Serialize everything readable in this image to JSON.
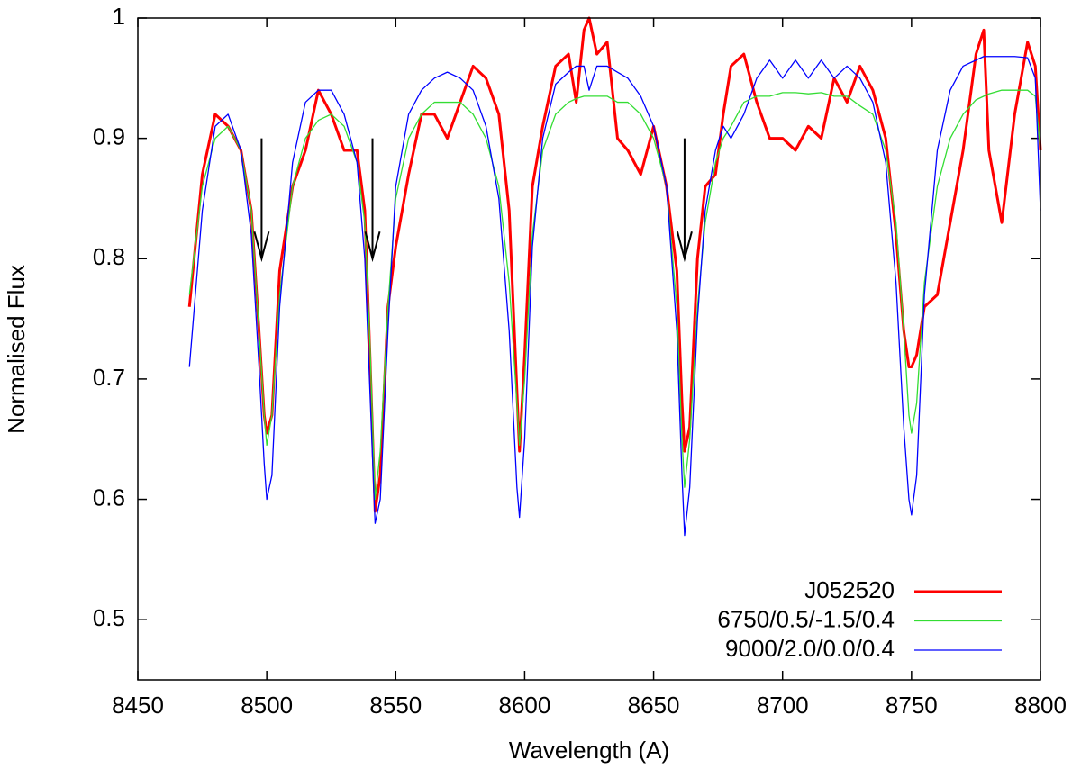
{
  "chart_data": {
    "type": "line",
    "x_label": "Wavelength (A)",
    "y_label": "Normalised Flux",
    "xlim": [
      8450,
      8800
    ],
    "ylim": [
      0.45,
      1
    ],
    "xticks": [
      8450,
      8500,
      8550,
      8600,
      8650,
      8700,
      8750,
      8800
    ],
    "yticks": [
      0.5,
      0.6,
      0.7,
      0.8,
      0.9,
      1
    ],
    "legend": "lower right",
    "x": [
      8470,
      8475,
      8480,
      8485,
      8490,
      8494,
      8497,
      8499,
      8500,
      8502,
      8505,
      8510,
      8515,
      8520,
      8525,
      8530,
      8535,
      8538,
      8540,
      8542,
      8544,
      8547,
      8550,
      8555,
      8560,
      8565,
      8570,
      8575,
      8580,
      8585,
      8590,
      8594,
      8597,
      8598,
      8600,
      8603,
      8607,
      8612,
      8617,
      8620,
      8623,
      8625,
      8628,
      8632,
      8636,
      8640,
      8645,
      8650,
      8655,
      8659,
      8661,
      8662,
      8664,
      8667,
      8670,
      8674,
      8677,
      8680,
      8685,
      8690,
      8695,
      8700,
      8705,
      8710,
      8715,
      8720,
      8725,
      8730,
      8735,
      8740,
      8744,
      8747,
      8749,
      8750,
      8752,
      8755,
      8760,
      8765,
      8770,
      8775,
      8778,
      8780,
      8785,
      8790,
      8795,
      8798,
      8800
    ],
    "series": [
      {
        "name": "J052520",
        "color": "#ff0000",
        "width": 3,
        "values": [
          0.76,
          0.87,
          0.92,
          0.91,
          0.89,
          0.84,
          0.74,
          0.67,
          0.655,
          0.67,
          0.79,
          0.86,
          0.89,
          0.94,
          0.92,
          0.89,
          0.89,
          0.84,
          0.72,
          0.59,
          0.62,
          0.76,
          0.81,
          0.87,
          0.92,
          0.92,
          0.9,
          0.93,
          0.96,
          0.95,
          0.92,
          0.84,
          0.69,
          0.64,
          0.72,
          0.86,
          0.91,
          0.96,
          0.97,
          0.93,
          0.99,
          1.0,
          0.97,
          0.98,
          0.9,
          0.89,
          0.87,
          0.91,
          0.86,
          0.79,
          0.68,
          0.64,
          0.66,
          0.8,
          0.86,
          0.87,
          0.92,
          0.96,
          0.97,
          0.93,
          0.9,
          0.9,
          0.89,
          0.91,
          0.9,
          0.95,
          0.93,
          0.96,
          0.94,
          0.9,
          0.82,
          0.74,
          0.71,
          0.71,
          0.72,
          0.76,
          0.77,
          0.83,
          0.89,
          0.97,
          0.99,
          0.89,
          0.83,
          0.92,
          0.98,
          0.96,
          0.89
        ]
      },
      {
        "name": "6750/0.5/-1.5/0.4",
        "color": "#33dd33",
        "width": 1.3,
        "values": [
          0.77,
          0.86,
          0.9,
          0.91,
          0.89,
          0.84,
          0.74,
          0.67,
          0.645,
          0.67,
          0.77,
          0.86,
          0.9,
          0.915,
          0.92,
          0.91,
          0.88,
          0.83,
          0.73,
          0.6,
          0.64,
          0.76,
          0.85,
          0.9,
          0.92,
          0.93,
          0.93,
          0.93,
          0.92,
          0.9,
          0.86,
          0.78,
          0.68,
          0.645,
          0.7,
          0.82,
          0.89,
          0.92,
          0.93,
          0.933,
          0.935,
          0.935,
          0.935,
          0.935,
          0.93,
          0.93,
          0.92,
          0.9,
          0.86,
          0.76,
          0.65,
          0.61,
          0.65,
          0.76,
          0.83,
          0.88,
          0.9,
          0.91,
          0.93,
          0.935,
          0.935,
          0.938,
          0.938,
          0.937,
          0.938,
          0.935,
          0.935,
          0.927,
          0.92,
          0.89,
          0.83,
          0.74,
          0.67,
          0.655,
          0.68,
          0.78,
          0.86,
          0.9,
          0.92,
          0.932,
          0.935,
          0.937,
          0.94,
          0.94,
          0.94,
          0.935,
          0.89
        ]
      },
      {
        "name": "9000/2.0/0.0/0.4",
        "color": "#0000ff",
        "width": 1.3,
        "values": [
          0.71,
          0.84,
          0.91,
          0.92,
          0.89,
          0.82,
          0.71,
          0.63,
          0.6,
          0.62,
          0.76,
          0.88,
          0.93,
          0.94,
          0.94,
          0.92,
          0.88,
          0.8,
          0.69,
          0.58,
          0.6,
          0.74,
          0.86,
          0.92,
          0.94,
          0.95,
          0.955,
          0.95,
          0.94,
          0.91,
          0.85,
          0.74,
          0.61,
          0.585,
          0.65,
          0.81,
          0.9,
          0.945,
          0.955,
          0.96,
          0.96,
          0.94,
          0.96,
          0.96,
          0.955,
          0.95,
          0.935,
          0.91,
          0.86,
          0.74,
          0.62,
          0.57,
          0.61,
          0.75,
          0.84,
          0.89,
          0.91,
          0.9,
          0.92,
          0.95,
          0.965,
          0.95,
          0.965,
          0.95,
          0.965,
          0.95,
          0.96,
          0.95,
          0.93,
          0.88,
          0.78,
          0.66,
          0.6,
          0.587,
          0.62,
          0.77,
          0.89,
          0.94,
          0.96,
          0.965,
          0.968,
          0.968,
          0.968,
          0.968,
          0.967,
          0.95,
          0.84
        ]
      }
    ],
    "arrows": [
      {
        "x": 8498,
        "from": 0.9,
        "to": 0.8
      },
      {
        "x": 8541,
        "from": 0.9,
        "to": 0.8
      },
      {
        "x": 8662,
        "from": 0.9,
        "to": 0.8
      }
    ]
  }
}
